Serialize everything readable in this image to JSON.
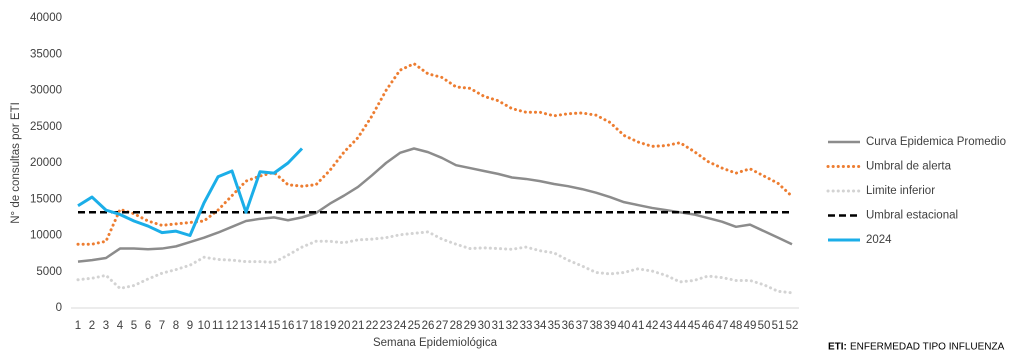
{
  "chart_data": {
    "type": "line",
    "y_label": "N° de consultas por ETI",
    "x_label": "Semana Epidemiológica",
    "note_label": "ETI:",
    "note": "ENFERMEDAD TIPO INFLUENZA",
    "categories": [
      "1",
      "2",
      "3",
      "4",
      "5",
      "6",
      "7",
      "8",
      "9",
      "10",
      "11",
      "12",
      "13",
      "14",
      "15",
      "16",
      "17",
      "18",
      "19",
      "20",
      "21",
      "22",
      "23",
      "24",
      "25",
      "26",
      "27",
      "28",
      "29",
      "30",
      "31",
      "32",
      "33",
      "34",
      "35",
      "36",
      "37",
      "38",
      "39",
      "40",
      "41",
      "42",
      "43",
      "44",
      "45",
      "46",
      "47",
      "48",
      "49",
      "50",
      "51",
      "52"
    ],
    "ylim": [
      0,
      40000
    ],
    "yticks": [
      0,
      5000,
      10000,
      15000,
      20000,
      25000,
      30000,
      35000,
      40000
    ],
    "series": [
      {
        "name": "Curva Epidemica Promedio",
        "color": "#8c8c8c",
        "style": "solid",
        "values": [
          6400,
          6600,
          6900,
          8200,
          8200,
          8100,
          8200,
          8500,
          9100,
          9700,
          10400,
          11200,
          12000,
          12300,
          12500,
          12100,
          12500,
          13100,
          14400,
          15500,
          16700,
          18300,
          20000,
          21400,
          22000,
          21500,
          20700,
          19700,
          19300,
          18900,
          18500,
          18000,
          17800,
          17500,
          17100,
          16800,
          16400,
          15900,
          15300,
          14600,
          14200,
          13800,
          13500,
          13200,
          12900,
          12400,
          11900,
          11200,
          11500,
          10600,
          9700,
          8800
        ]
      },
      {
        "name": "Umbral de alerta",
        "color": "#ED7D31",
        "style": "dotted",
        "values": [
          8800,
          8800,
          9200,
          13600,
          13000,
          12000,
          11400,
          11600,
          11800,
          12000,
          13500,
          15500,
          17500,
          18200,
          18700,
          17000,
          16800,
          17000,
          19000,
          21500,
          23500,
          26500,
          30000,
          32800,
          33700,
          32300,
          31800,
          30500,
          30300,
          29200,
          28600,
          27500,
          27000,
          27000,
          26500,
          26800,
          26900,
          26600,
          25600,
          23800,
          22900,
          22300,
          22400,
          22800,
          21600,
          20200,
          19300,
          18600,
          19200,
          18200,
          17200,
          15400
        ]
      },
      {
        "name": "Limite inferior",
        "color": "#d3d3d3",
        "style": "dotted",
        "values": [
          3900,
          4100,
          4500,
          2700,
          3100,
          4000,
          4800,
          5300,
          5900,
          7000,
          6700,
          6600,
          6400,
          6400,
          6300,
          7300,
          8400,
          9200,
          9200,
          9000,
          9400,
          9500,
          9700,
          10100,
          10300,
          10500,
          9500,
          8800,
          8200,
          8300,
          8200,
          8100,
          8400,
          7900,
          7600,
          6600,
          5800,
          4900,
          4700,
          4900,
          5400,
          5100,
          4500,
          3600,
          3800,
          4400,
          4200,
          3800,
          3800,
          3200,
          2300,
          2100
        ]
      },
      {
        "name": "Umbral estacional",
        "color": "#000000",
        "style": "dashed",
        "values": [
          13200,
          13200,
          13200,
          13200,
          13200,
          13200,
          13200,
          13200,
          13200,
          13200,
          13200,
          13200,
          13200,
          13200,
          13200,
          13200,
          13200,
          13200,
          13200,
          13200,
          13200,
          13200,
          13200,
          13200,
          13200,
          13200,
          13200,
          13200,
          13200,
          13200,
          13200,
          13200,
          13200,
          13200,
          13200,
          13200,
          13200,
          13200,
          13200,
          13200,
          13200,
          13200,
          13200,
          13200,
          13200,
          13200,
          13200,
          13200,
          13200,
          13200,
          13200,
          13200
        ]
      },
      {
        "name": "2024",
        "color": "#1BAEE8",
        "style": "solid",
        "values": [
          14100,
          15300,
          13500,
          12900,
          12000,
          11300,
          10400,
          10600,
          10000,
          14500,
          18100,
          18900,
          13200,
          18800,
          18600,
          20000,
          22000,
          null,
          null,
          null,
          null,
          null,
          null,
          null,
          null,
          null,
          null,
          null,
          null,
          null,
          null,
          null,
          null,
          null,
          null,
          null,
          null,
          null,
          null,
          null,
          null,
          null,
          null,
          null,
          null,
          null,
          null,
          null,
          null,
          null,
          null,
          null
        ]
      }
    ]
  }
}
